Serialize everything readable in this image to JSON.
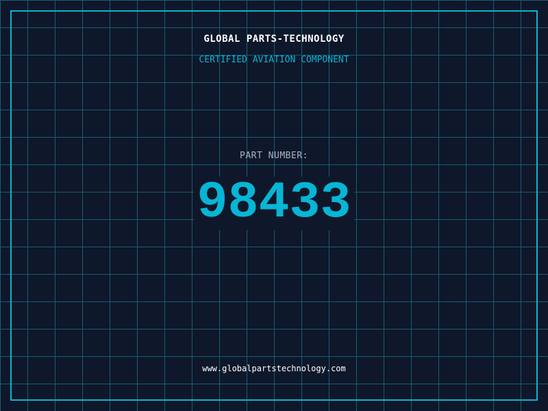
{
  "header": {
    "title": "GLOBAL PARTS-TECHNOLOGY",
    "subtitle": "CERTIFIED AVIATION COMPONENT"
  },
  "part": {
    "label": "PART NUMBER:",
    "number": "98433"
  },
  "footer": {
    "url": "www.globalpartstechnology.com"
  },
  "colors": {
    "background": "#0f172a",
    "accent": "#06b6d4",
    "grid": "#155e75"
  }
}
